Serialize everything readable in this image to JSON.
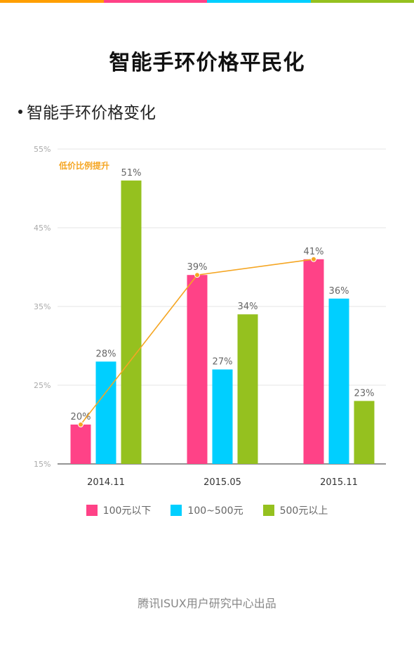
{
  "header": {
    "stripe_colors": [
      "#ff9f00",
      "#ff4287",
      "#00cfff",
      "#95c11f"
    ]
  },
  "title": "智能手环价格平民化",
  "subtitle": "智能手环价格变化",
  "footer": "腾讯ISUX用户研究中心出品",
  "colors": {
    "series_1": "#ff4287",
    "series_2": "#00cfff",
    "series_3": "#95c11f",
    "trend_line": "#f5a623",
    "grid": "#e6e6e6",
    "tick_text": "#aaaaaa"
  },
  "chart_data": {
    "type": "bar",
    "categories": [
      "2014.11",
      "2015.05",
      "2015.11"
    ],
    "series": [
      {
        "name": "100元以下",
        "values": [
          20,
          39,
          41
        ],
        "labels": [
          "20%",
          "39%",
          "41%"
        ]
      },
      {
        "name": "100~500元",
        "values": [
          28,
          27,
          36
        ],
        "labels": [
          "28%",
          "27%",
          "36%"
        ]
      },
      {
        "name": "500元以上",
        "values": [
          51,
          34,
          23
        ],
        "labels": [
          "51%",
          "34%",
          "23%"
        ]
      }
    ],
    "ylim": [
      15,
      55
    ],
    "yticks": [
      15,
      25,
      35,
      45,
      55
    ],
    "ytick_labels": [
      "15%",
      "25%",
      "35%",
      "45%",
      "55%"
    ],
    "grid": true,
    "legend_position": "bottom",
    "annotation": "低价比例提升",
    "trend_line_series": "100元以下"
  }
}
